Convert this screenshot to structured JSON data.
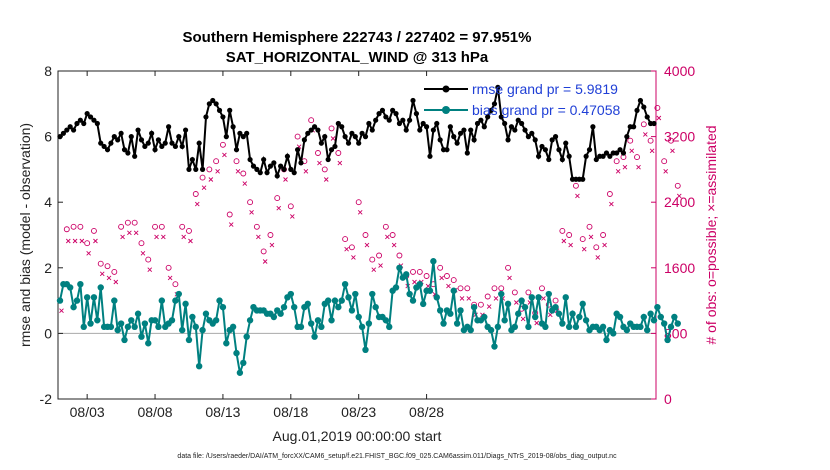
{
  "chart_data": {
    "type": "line",
    "title_line1": "Southern Hemisphere 222743 / 227402 = 97.951%",
    "title_line2": "SAT_HORIZONTAL_WIND @ 313 hPa",
    "ylabel_left": "rmse and bias (model - observation)",
    "ylabel_right": "# of obs: o=possible; ×=assimilated",
    "xlabel": "Aug.01,2019 00:00:00 start",
    "footer": "data file: /Users/raeder/DAI/ATM_forcXX/CAM6_setup/f.e21.FHIST_BGC.f09_025.CAM6assim.011/Diags_NTrS_2019-08/obs_diag_output.nc",
    "x_ticks": [
      "08/03",
      "08/08",
      "08/13",
      "08/18",
      "08/23",
      "08/28"
    ],
    "y_left_ticks": [
      "-2",
      "0",
      "2",
      "4",
      "6",
      "8"
    ],
    "y_right_ticks": [
      "0",
      "800",
      "1600",
      "2400",
      "3200",
      "4000"
    ],
    "ylim_left": [
      -2,
      8
    ],
    "ylim_right": [
      0,
      4000
    ],
    "legend": {
      "rmse_label": "rmse grand pr = 5.9819",
      "bias_label": "bias grand pr = 0.47058"
    },
    "colors": {
      "rmse": "#000000",
      "bias": "#008080",
      "obs": "#cc0066",
      "zero_line": "#aaaaaa",
      "legend_text": "#1f3fd6"
    },
    "series": [
      {
        "name": "rmse",
        "values": [
          6.0,
          6.1,
          6.2,
          6.3,
          6.2,
          6.4,
          6.5,
          6.4,
          6.7,
          6.6,
          6.5,
          6.4,
          5.8,
          5.7,
          5.6,
          5.8,
          6.0,
          5.9,
          6.1,
          5.6,
          5.5,
          6.0,
          5.4,
          6.2,
          5.9,
          5.7,
          5.8,
          6.1,
          5.6,
          5.9,
          5.7,
          5.8,
          6.3,
          5.8,
          5.7,
          6.0,
          5.7,
          6.2,
          5.0,
          5.3,
          5.0,
          5.8,
          5.0,
          6.6,
          7.0,
          7.1,
          7.0,
          6.8,
          6.6,
          6.0,
          6.8,
          6.3,
          5.6,
          6.1,
          6.0,
          6.1,
          5.3,
          5.1,
          5.0,
          4.9,
          5.3,
          4.9,
          5.1,
          5.2,
          4.8,
          5.1,
          5.0,
          5.4,
          5.0,
          4.9,
          5.6,
          5.2,
          5.9,
          6.1,
          6.2,
          6.3,
          6.2,
          5.8,
          6.0,
          5.3,
          5.6,
          5.7,
          6.4,
          6.3,
          6.0,
          5.8,
          6.1,
          6.0,
          5.8,
          6.1,
          6.0,
          6.4,
          6.2,
          6.5,
          6.7,
          6.8,
          6.6,
          6.5,
          6.8,
          6.7,
          6.4,
          6.5,
          6.2,
          6.5,
          7.1,
          6.7,
          6.2,
          6.4,
          6.3,
          5.4,
          6.2,
          6.4,
          5.9,
          5.6,
          5.6,
          6.3,
          6.0,
          5.8,
          6.1,
          6.2,
          5.5,
          6.2,
          5.9,
          6.4,
          6.5,
          6.3,
          6.6,
          6.8,
          7.0,
          7.5,
          6.6,
          6.4,
          5.9,
          6.3,
          6.2,
          6.5,
          6.4,
          6.2,
          6.0,
          6.1,
          5.9,
          5.4,
          5.7,
          5.6,
          5.3,
          5.9,
          6.0,
          5.6,
          5.3,
          5.8,
          5.4,
          4.7,
          4.7,
          4.7,
          4.7,
          5.4,
          5.6,
          6.3,
          5.3,
          5.4,
          5.4,
          5.5,
          5.4,
          5.5,
          5.5,
          5.6,
          5.5,
          6.0,
          6.3,
          6.3,
          6.8,
          7.1,
          6.9,
          6.6,
          6.4,
          6.4
        ]
      },
      {
        "name": "bias",
        "values": [
          1.0,
          1.5,
          1.5,
          1.4,
          0.8,
          1.0,
          1.5,
          0.2,
          1.1,
          0.3,
          1.1,
          0.4,
          1.4,
          0.2,
          0.2,
          0.2,
          1.0,
          0.1,
          0.3,
          -0.2,
          0.2,
          0.4,
          0.2,
          0.6,
          -0.1,
          0.3,
          -0.3,
          0.4,
          0.4,
          0.2,
          1.0,
          0.2,
          0.3,
          0.4,
          1.0,
          1.2,
          0.1,
          0.9,
          -0.2,
          0.5,
          0.2,
          -1.0,
          0.1,
          0.6,
          0.4,
          0.3,
          0.4,
          1.0,
          0.8,
          -0.3,
          0.1,
          0.2,
          -0.6,
          -1.2,
          -0.9,
          -0.1,
          0.4,
          0.8,
          0.7,
          0.7,
          0.7,
          0.6,
          0.6,
          0.5,
          0.7,
          0.6,
          0.8,
          1.1,
          1.2,
          0.8,
          0.2,
          0.2,
          0.8,
          0.9,
          0.3,
          -0.1,
          0.4,
          0.2,
          0.9,
          1.0,
          0.4,
          1.0,
          0.8,
          1.0,
          1.5,
          1.1,
          0.7,
          1.2,
          0.5,
          0.2,
          -0.5,
          0.3,
          1.2,
          0.8,
          0.5,
          0.5,
          0.4,
          0.2,
          1.3,
          1.4,
          2.0,
          1.7,
          1.8,
          1.2,
          1.0,
          1.4,
          1.5,
          0.9,
          1.3,
          1.3,
          2.2,
          1.1,
          0.7,
          0.3,
          0.7,
          0.6,
          1.3,
          0.3,
          0.7,
          0.1,
          0.2,
          0.1,
          0.8,
          0.4,
          0.4,
          0.5,
          0.2,
          0.1,
          -0.4,
          0.2,
          1.2,
          0.4,
          0.9,
          0.1,
          0.2,
          0.6,
          1.0,
          0.8,
          0.2,
          1.1,
          0.5,
          1.1,
          0.3,
          0.2,
          1.2,
          0.7,
          0.8,
          0.6,
          0.3,
          1.1,
          0.2,
          0.6,
          0.2,
          0.5,
          0.9,
          0.4,
          0.1,
          0.2,
          0.2,
          0.1,
          0.2,
          -0.2,
          0.1,
          0.0,
          0.6,
          0.5,
          0.2,
          0.1,
          0.3,
          0.2,
          0.2,
          0.2,
          0.5,
          0.1,
          0.6,
          0.4,
          0.8,
          0.5,
          0.3,
          -0.2,
          0.2,
          0.5,
          0.3
        ]
      },
      {
        "name": "possible",
        "values": [
          1200,
          2120,
          2070,
          1980,
          2100,
          2550,
          2100,
          2200,
          1900,
          1750,
          2050,
          1680,
          1650,
          1400,
          1620,
          1580,
          1550,
          2050,
          2100,
          1950,
          2150,
          2200,
          2150,
          1650,
          1900,
          2200,
          1700,
          2250,
          2100,
          2200,
          2100,
          1800,
          1600,
          1400,
          1400,
          1900,
          2100,
          1850,
          2050,
          2100,
          2500,
          2200,
          2700,
          2550,
          2800,
          3300,
          2900,
          2000,
          3100,
          2700,
          2250,
          2850,
          2900,
          2300,
          2750,
          2900,
          2400,
          2600,
          2100,
          2350,
          1800,
          2600,
          2000,
          2900,
          2450,
          2300,
          2800,
          3100,
          2350,
          2750,
          3200,
          2700,
          2900,
          3300,
          3400,
          2700,
          3000,
          2500,
          2800,
          2650,
          3300,
          3100,
          3000,
          2250,
          1950,
          2500,
          1850,
          2900,
          2400,
          2150,
          2000,
          2050,
          1700,
          2150,
          1750,
          1950,
          2100,
          1600,
          2000,
          1550,
          1750,
          1450,
          1500,
          1600,
          1550,
          1550,
          1550,
          1450,
          1500,
          1650,
          1400,
          1450,
          1600,
          1600,
          1500,
          1500,
          1450,
          1250,
          1350,
          1250,
          1350,
          1200,
          1150,
          1100,
          1150,
          1250,
          1250,
          1300,
          1350,
          1600,
          1350,
          1300,
          1600,
          1450,
          1300,
          1150,
          1100,
          1500,
          1300,
          1500,
          1050,
          1300,
          1350,
          1250,
          1150,
          1400,
          1200,
          1250,
          2050,
          2200,
          2000,
          1900,
          2600,
          2500,
          1950,
          1450,
          2100,
          2400,
          1850,
          2150,
          2000,
          2050,
          2500,
          2500,
          2900,
          2400,
          2950,
          2450,
          3150,
          2550,
          2950,
          3050,
          3350,
          2900,
          3150,
          3500,
          3550,
          3600,
          2900,
          3500,
          3150,
          2650,
          2600
        ]
      },
      {
        "name": "assimilated",
        "values": [
          1150,
          2050,
          2000,
          1900,
          2000,
          2450,
          2000,
          2150,
          1850,
          1700,
          2000,
          1600,
          1600,
          1350,
          1550,
          1500,
          1500,
          2000,
          2050,
          1900,
          2100,
          2150,
          2100,
          1600,
          1850,
          2150,
          1650,
          2200,
          2050,
          2150,
          2050,
          1750,
          1550,
          1350,
          1350,
          1850,
          2050,
          1800,
          2000,
          2050,
          2450,
          2150,
          2650,
          2500,
          2750,
          3250,
          2850,
          1950,
          3050,
          2650,
          2200,
          2800,
          2850,
          2250,
          2700,
          2850,
          2350,
          2550,
          2050,
          2300,
          1750,
          2550,
          1950,
          2850,
          2400,
          2250,
          2750,
          3050,
          2300,
          2700,
          3150,
          2650,
          2850,
          3250,
          3350,
          2650,
          2950,
          2450,
          2750,
          2600,
          3250,
          3050,
          2950,
          2200,
          1900,
          2450,
          1800,
          2850,
          2350,
          2100,
          1950,
          2000,
          1650,
          2100,
          1700,
          1900,
          2050,
          1550,
          1950,
          1500,
          1700,
          1400,
          1450,
          1550,
          1500,
          1500,
          1500,
          1400,
          1450,
          1600,
          1350,
          1400,
          1550,
          1550,
          1450,
          1450,
          1400,
          1200,
          1300,
          1200,
          1300,
          1150,
          1100,
          1050,
          1100,
          1200,
          1200,
          1250,
          1300,
          1550,
          1300,
          1250,
          1550,
          1400,
          1250,
          1100,
          1050,
          1450,
          1250,
          1450,
          1000,
          1250,
          1300,
          1200,
          1100,
          1350,
          1150,
          1200,
          2000,
          2150,
          1950,
          1850,
          2550,
          2450,
          1900,
          1400,
          2050,
          2350,
          1800,
          2100,
          1950,
          2000,
          2450,
          2450,
          2850,
          2350,
          2900,
          2400,
          3100,
          2500,
          2900,
          3000,
          3300,
          2850,
          3100,
          3450,
          3500,
          3550,
          2850,
          3450,
          3100,
          2600,
          2550
        ]
      }
    ]
  }
}
